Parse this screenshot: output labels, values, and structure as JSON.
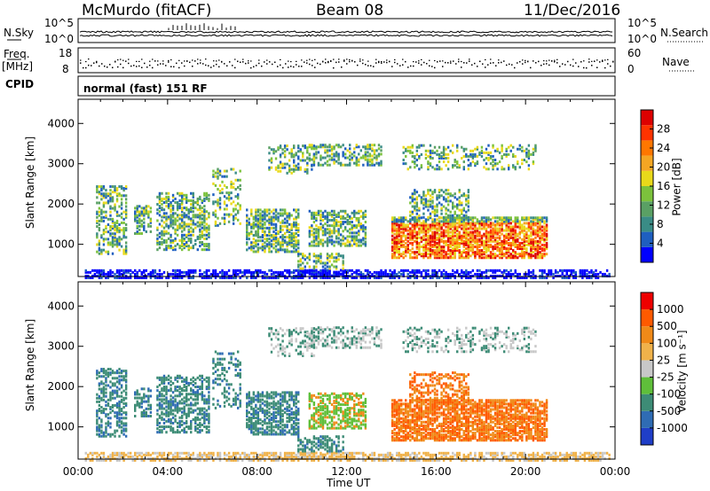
{
  "header": {
    "station": "McMurdo (fitACF)",
    "beam": "Beam 08",
    "date": "11/Dec/2016"
  },
  "strips": {
    "nsky_label": "N.Sky",
    "nsearch_label": "N.Search",
    "nsky_ticks": [
      "10^5",
      "10^0"
    ],
    "nsearch_ticks": [
      "10^5",
      "10^0"
    ],
    "freq_label_line1": "Freq.",
    "freq_label_line2": "[MHz]",
    "freq_ticks": [
      "18",
      "8"
    ],
    "nave_label": "Nave",
    "nave_ticks": [
      "60",
      "0"
    ],
    "cpid_label": "CPID",
    "cpid_value": "normal (fast) 151 RF"
  },
  "chart_data": [
    {
      "type": "heatmap",
      "name": "power",
      "ylabel": "Slant Range [km]",
      "xlabel": "",
      "yticks": [
        "4000",
        "3000",
        "2000",
        "1000"
      ],
      "ylim": [
        200,
        4600
      ],
      "xlim_hours": [
        0,
        24
      ],
      "colorbar_label": "Power [dB]",
      "colorbar_ticks": [
        "28",
        "24",
        "20",
        "16",
        "12",
        "8",
        "4"
      ],
      "colorbar_colors": [
        "#0000ff",
        "#1f5fc0",
        "#3a8c86",
        "#5aa064",
        "#7cc23c",
        "#e9d91a",
        "#f5a623",
        "#ff7700",
        "#ff3300",
        "#dd0000"
      ]
    },
    {
      "type": "heatmap",
      "name": "velocity",
      "ylabel": "Slant Range [km]",
      "xlabel": "Time UT",
      "yticks": [
        "4000",
        "3000",
        "2000",
        "1000"
      ],
      "ylim": [
        200,
        4600
      ],
      "xlim_hours": [
        0,
        24
      ],
      "xticks": [
        "00:00",
        "04:00",
        "08:00",
        "12:00",
        "16:00",
        "20:00",
        "00:00"
      ],
      "colorbar_label": "Velocity [m s⁻¹]",
      "colorbar_ticks": [
        "1000",
        "500",
        "100",
        "25",
        "-25",
        "-100",
        "-500",
        "-1000"
      ],
      "colorbar_colors": [
        "#1f3ec8",
        "#2f6cb4",
        "#3d8c76",
        "#5fbf3a",
        "#c8c8c8",
        "#f0b24a",
        "#f08a18",
        "#ff5a00",
        "#ee0000"
      ]
    }
  ]
}
